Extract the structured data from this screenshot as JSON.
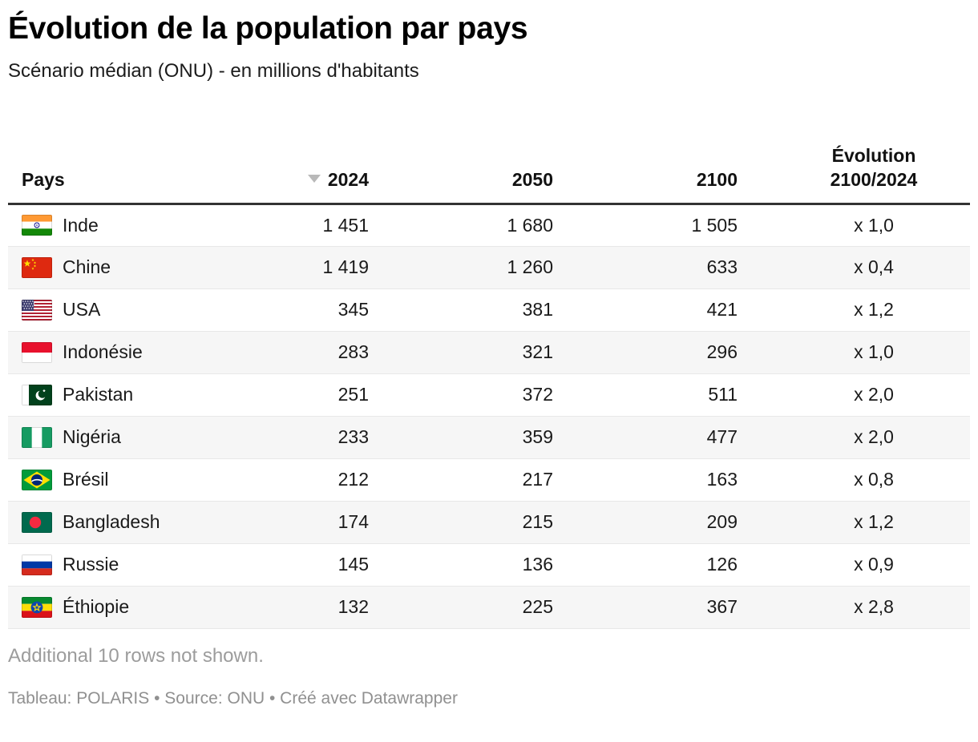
{
  "header": {
    "title": "Évolution de la population par pays",
    "subtitle": "Scénario médian (ONU) - en millions d'habitants"
  },
  "table": {
    "columns": [
      {
        "label": "Pays",
        "align": "left"
      },
      {
        "label": "2024",
        "align": "right",
        "sorted": "desc",
        "sort_icon": "sort-desc-icon"
      },
      {
        "label": "2050",
        "align": "right"
      },
      {
        "label": "2100",
        "align": "right"
      },
      {
        "label": "Évolution\n2100/2024",
        "align": "center"
      }
    ],
    "rows": [
      {
        "flag": "india",
        "country": "Inde",
        "y2024": "1 451",
        "y2050": "1 680",
        "y2100": "1 505",
        "evolution": "x 1,0"
      },
      {
        "flag": "china",
        "country": "Chine",
        "y2024": "1 419",
        "y2050": "1 260",
        "y2100": "633",
        "evolution": "x 0,4"
      },
      {
        "flag": "usa",
        "country": "USA",
        "y2024": "345",
        "y2050": "381",
        "y2100": "421",
        "evolution": "x 1,2"
      },
      {
        "flag": "indonesia",
        "country": "Indonésie",
        "y2024": "283",
        "y2050": "321",
        "y2100": "296",
        "evolution": "x 1,0"
      },
      {
        "flag": "pakistan",
        "country": "Pakistan",
        "y2024": "251",
        "y2050": "372",
        "y2100": "511",
        "evolution": "x 2,0"
      },
      {
        "flag": "nigeria",
        "country": "Nigéria",
        "y2024": "233",
        "y2050": "359",
        "y2100": "477",
        "evolution": "x 2,0"
      },
      {
        "flag": "brazil",
        "country": "Brésil",
        "y2024": "212",
        "y2050": "217",
        "y2100": "163",
        "evolution": "x 0,8"
      },
      {
        "flag": "bangladesh",
        "country": "Bangladesh",
        "y2024": "174",
        "y2050": "215",
        "y2100": "209",
        "evolution": "x 1,2"
      },
      {
        "flag": "russia",
        "country": "Russie",
        "y2024": "145",
        "y2050": "136",
        "y2100": "126",
        "evolution": "x 0,9"
      },
      {
        "flag": "ethiopia",
        "country": "Éthiopie",
        "y2024": "132",
        "y2050": "225",
        "y2100": "367",
        "evolution": "x 2,8"
      }
    ]
  },
  "footnote": "Additional 10 rows not shown.",
  "byline": "Tableau: POLARIS • Source: ONU • Créé avec Datawrapper",
  "colors": {
    "header_rule": "#333333",
    "row_stripe": "#f6f6f6",
    "muted_text": "#9c9c9c",
    "sort_icon": "#b9b9b9"
  },
  "chart_data": {
    "type": "table",
    "title": "Évolution de la population par pays",
    "subtitle": "Scénario médian (ONU) - en millions d'habitants",
    "unit": "millions d'habitants",
    "sorted_by": "2024",
    "sort_order": "desc",
    "columns": [
      "Pays",
      "2024",
      "2050",
      "2100",
      "Évolution 2100/2024"
    ],
    "rows": [
      [
        "Inde",
        1451,
        1680,
        1505,
        "x 1,0"
      ],
      [
        "Chine",
        1419,
        1260,
        633,
        "x 0,4"
      ],
      [
        "USA",
        345,
        381,
        421,
        "x 1,2"
      ],
      [
        "Indonésie",
        283,
        321,
        296,
        "x 1,0"
      ],
      [
        "Pakistan",
        251,
        372,
        511,
        "x 2,0"
      ],
      [
        "Nigéria",
        233,
        359,
        477,
        "x 2,0"
      ],
      [
        "Brésil",
        212,
        217,
        163,
        "x 0,8"
      ],
      [
        "Bangladesh",
        174,
        215,
        209,
        "x 1,2"
      ],
      [
        "Russie",
        145,
        136,
        126,
        "x 0,9"
      ],
      [
        "Éthiopie",
        132,
        225,
        367,
        "x 2,8"
      ]
    ]
  }
}
